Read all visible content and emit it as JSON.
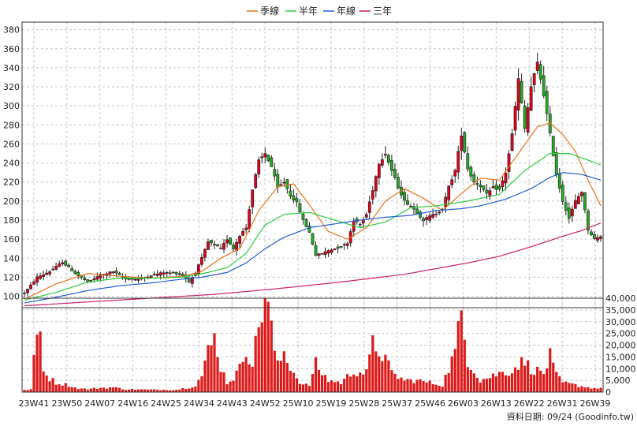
{
  "legend": [
    {
      "label": "季線",
      "color": "#e8731a"
    },
    {
      "label": "半年",
      "color": "#2ecc40"
    },
    {
      "label": "年線",
      "color": "#1f5fcf"
    },
    {
      "label": "三年",
      "color": "#cc1f6a"
    }
  ],
  "footer": "資料日期: 09/24  (Goodinfo.tw)",
  "chart_data": [
    {
      "type": "candlestick",
      "ylim": [
        88,
        388
      ],
      "yticks": [
        100,
        120,
        140,
        160,
        180,
        200,
        220,
        240,
        260,
        280,
        300,
        320,
        340,
        360,
        380
      ],
      "x_ticks": [
        "23W41",
        "23W50",
        "24W07",
        "24W16",
        "24W25",
        "24W34",
        "24W43",
        "24W52",
        "25W10",
        "25W19",
        "25W28",
        "25W37",
        "25W46",
        "26W03",
        "26W13",
        "26W22",
        "26W31",
        "26W39"
      ],
      "close_keypoints": [
        [
          0,
          103
        ],
        [
          4,
          120
        ],
        [
          8,
          126
        ],
        [
          12,
          136
        ],
        [
          16,
          124
        ],
        [
          20,
          115
        ],
        [
          24,
          122
        ],
        [
          28,
          126
        ],
        [
          32,
          118
        ],
        [
          36,
          118
        ],
        [
          40,
          122
        ],
        [
          44,
          125
        ],
        [
          48,
          124
        ],
        [
          50,
          122
        ],
        [
          52,
          115
        ],
        [
          54,
          125
        ],
        [
          56,
          140
        ],
        [
          58,
          157
        ],
        [
          60,
          154
        ],
        [
          62,
          150
        ],
        [
          64,
          160
        ],
        [
          66,
          150
        ],
        [
          68,
          164
        ],
        [
          70,
          172
        ],
        [
          72,
          212
        ],
        [
          74,
          242
        ],
        [
          76,
          250
        ],
        [
          78,
          236
        ],
        [
          80,
          214
        ],
        [
          82,
          220
        ],
        [
          84,
          206
        ],
        [
          86,
          198
        ],
        [
          88,
          180
        ],
        [
          90,
          167
        ],
        [
          92,
          143
        ],
        [
          94,
          145
        ],
        [
          96,
          148
        ],
        [
          98,
          150
        ],
        [
          100,
          152
        ],
        [
          102,
          156
        ],
        [
          104,
          180
        ],
        [
          106,
          175
        ],
        [
          108,
          186
        ],
        [
          110,
          212
        ],
        [
          112,
          240
        ],
        [
          114,
          250
        ],
        [
          116,
          232
        ],
        [
          118,
          215
        ],
        [
          120,
          200
        ],
        [
          122,
          195
        ],
        [
          124,
          188
        ],
        [
          126,
          180
        ],
        [
          128,
          184
        ],
        [
          130,
          187
        ],
        [
          132,
          192
        ],
        [
          134,
          215
        ],
        [
          136,
          232
        ],
        [
          138,
          270
        ],
        [
          140,
          234
        ],
        [
          142,
          220
        ],
        [
          144,
          216
        ],
        [
          146,
          207
        ],
        [
          148,
          214
        ],
        [
          150,
          212
        ],
        [
          152,
          230
        ],
        [
          154,
          270
        ],
        [
          156,
          328
        ],
        [
          158,
          276
        ],
        [
          160,
          320
        ],
        [
          162,
          345
        ],
        [
          164,
          312
        ],
        [
          166,
          270
        ],
        [
          168,
          228
        ],
        [
          170,
          200
        ],
        [
          172,
          182
        ],
        [
          174,
          200
        ],
        [
          176,
          210
        ],
        [
          178,
          170
        ],
        [
          180,
          160
        ],
        [
          182,
          163
        ]
      ],
      "ma_quarter": [
        [
          0,
          97
        ],
        [
          10,
          113
        ],
        [
          20,
          124
        ],
        [
          30,
          121
        ],
        [
          40,
          119
        ],
        [
          50,
          121
        ],
        [
          56,
          126
        ],
        [
          62,
          140
        ],
        [
          68,
          150
        ],
        [
          74,
          190
        ],
        [
          80,
          215
        ],
        [
          85,
          218
        ],
        [
          90,
          196
        ],
        [
          96,
          168
        ],
        [
          102,
          160
        ],
        [
          108,
          172
        ],
        [
          114,
          200
        ],
        [
          120,
          213
        ],
        [
          126,
          203
        ],
        [
          132,
          190
        ],
        [
          138,
          208
        ],
        [
          144,
          224
        ],
        [
          150,
          222
        ],
        [
          156,
          250
        ],
        [
          162,
          278
        ],
        [
          166,
          282
        ],
        [
          170,
          270
        ],
        [
          174,
          252
        ],
        [
          178,
          222
        ],
        [
          182,
          195
        ]
      ],
      "ma_half": [
        [
          0,
          96
        ],
        [
          10,
          104
        ],
        [
          20,
          115
        ],
        [
          30,
          119
        ],
        [
          40,
          119
        ],
        [
          50,
          120
        ],
        [
          58,
          125
        ],
        [
          64,
          130
        ],
        [
          70,
          145
        ],
        [
          76,
          175
        ],
        [
          82,
          186
        ],
        [
          90,
          188
        ],
        [
          98,
          180
        ],
        [
          106,
          172
        ],
        [
          114,
          178
        ],
        [
          122,
          193
        ],
        [
          130,
          195
        ],
        [
          140,
          200
        ],
        [
          150,
          207
        ],
        [
          158,
          232
        ],
        [
          166,
          250
        ],
        [
          172,
          250
        ],
        [
          178,
          243
        ],
        [
          182,
          238
        ]
      ],
      "ma_year": [
        [
          0,
          93
        ],
        [
          10,
          99
        ],
        [
          20,
          106
        ],
        [
          30,
          111
        ],
        [
          40,
          114
        ],
        [
          50,
          118
        ],
        [
          56,
          120
        ],
        [
          64,
          125
        ],
        [
          70,
          135
        ],
        [
          76,
          150
        ],
        [
          82,
          162
        ],
        [
          90,
          172
        ],
        [
          98,
          176
        ],
        [
          106,
          180
        ],
        [
          114,
          183
        ],
        [
          122,
          185
        ],
        [
          130,
          190
        ],
        [
          138,
          192
        ],
        [
          144,
          195
        ],
        [
          152,
          202
        ],
        [
          160,
          213
        ],
        [
          166,
          225
        ],
        [
          170,
          230
        ],
        [
          176,
          228
        ],
        [
          182,
          222
        ]
      ],
      "ma_3yr": [
        [
          0,
          90
        ],
        [
          20,
          94
        ],
        [
          40,
          98
        ],
        [
          60,
          102
        ],
        [
          80,
          108
        ],
        [
          100,
          115
        ],
        [
          120,
          123
        ],
        [
          140,
          135
        ],
        [
          150,
          142
        ],
        [
          160,
          152
        ],
        [
          170,
          163
        ],
        [
          176,
          169
        ],
        [
          182,
          177
        ]
      ]
    },
    {
      "type": "bar",
      "ylim": [
        0,
        40000
      ],
      "yticks": [
        0,
        5000,
        10000,
        15000,
        20000,
        25000,
        30000,
        35000,
        40000
      ],
      "ytick_labels": [
        "0",
        "5,000",
        "10,000",
        "15,000",
        "20,000",
        "25,000",
        "30,000",
        "35,000",
        "40,000"
      ],
      "volume_keypoints": [
        [
          0,
          800
        ],
        [
          2,
          1200
        ],
        [
          3,
          13000
        ],
        [
          4,
          24000
        ],
        [
          5,
          25000
        ],
        [
          6,
          11000
        ],
        [
          7,
          7000
        ],
        [
          8,
          6000
        ],
        [
          10,
          4000
        ],
        [
          14,
          3000
        ],
        [
          16,
          1800
        ],
        [
          20,
          1200
        ],
        [
          24,
          1800
        ],
        [
          28,
          2000
        ],
        [
          32,
          1200
        ],
        [
          40,
          1000
        ],
        [
          48,
          1000
        ],
        [
          52,
          2000
        ],
        [
          54,
          3000
        ],
        [
          56,
          7000
        ],
        [
          58,
          17000
        ],
        [
          60,
          23000
        ],
        [
          62,
          11000
        ],
        [
          64,
          4000
        ],
        [
          66,
          6000
        ],
        [
          68,
          10000
        ],
        [
          70,
          19000
        ],
        [
          72,
          12000
        ],
        [
          74,
          28000
        ],
        [
          76,
          42000
        ],
        [
          77,
          36000
        ],
        [
          78,
          26000
        ],
        [
          80,
          11000
        ],
        [
          82,
          17000
        ],
        [
          84,
          11000
        ],
        [
          86,
          6000
        ],
        [
          88,
          3000
        ],
        [
          90,
          3000
        ],
        [
          92,
          12000
        ],
        [
          94,
          8000
        ],
        [
          96,
          5000
        ],
        [
          100,
          4000
        ],
        [
          104,
          9000
        ],
        [
          108,
          8000
        ],
        [
          110,
          20000
        ],
        [
          112,
          18000
        ],
        [
          114,
          14000
        ],
        [
          116,
          8000
        ],
        [
          120,
          5000
        ],
        [
          124,
          5000
        ],
        [
          128,
          4000
        ],
        [
          132,
          3000
        ],
        [
          136,
          17000
        ],
        [
          138,
          33000
        ],
        [
          140,
          14000
        ],
        [
          144,
          5000
        ],
        [
          150,
          8000
        ],
        [
          154,
          9000
        ],
        [
          156,
          12000
        ],
        [
          158,
          13000
        ],
        [
          160,
          10000
        ],
        [
          164,
          8000
        ],
        [
          166,
          15000
        ],
        [
          168,
          7000
        ],
        [
          170,
          4000
        ],
        [
          174,
          3000
        ],
        [
          178,
          2000
        ],
        [
          182,
          1500
        ]
      ]
    }
  ]
}
